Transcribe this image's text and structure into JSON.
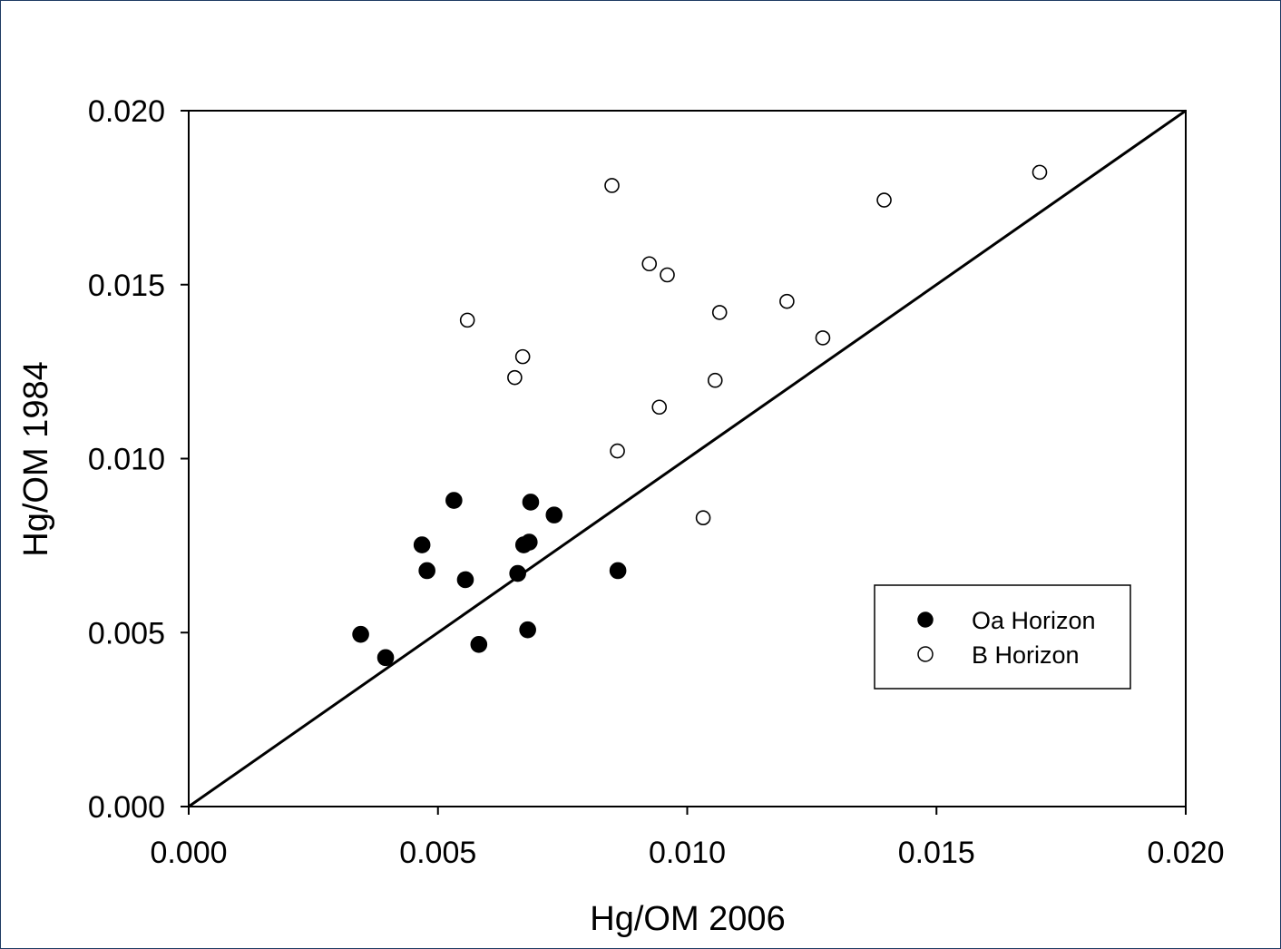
{
  "chart_data": {
    "type": "scatter",
    "xlabel": "Hg/OM 2006",
    "ylabel": "Hg/OM 1984",
    "xlim": [
      0,
      0.02
    ],
    "ylim": [
      0,
      0.02
    ],
    "x_ticks": [
      "0.000",
      "0.005",
      "0.010",
      "0.015",
      "0.020"
    ],
    "y_ticks": [
      "0.000",
      "0.005",
      "0.010",
      "0.015",
      "0.020"
    ],
    "x_tick_values": [
      0,
      0.005,
      0.01,
      0.015,
      0.02
    ],
    "y_tick_values": [
      0,
      0.005,
      0.01,
      0.015,
      0.02
    ],
    "grid": false,
    "legend_position": "bottom-right",
    "reference_line": {
      "kind": "1:1",
      "from": [
        0,
        0
      ],
      "to": [
        0.02,
        0.02
      ]
    },
    "series": [
      {
        "name": "Oa Horizon",
        "marker": "filled-circle",
        "color": "#000000",
        "points": [
          [
            0.00345,
            0.00495
          ],
          [
            0.00395,
            0.00428
          ],
          [
            0.00468,
            0.00752
          ],
          [
            0.00478,
            0.00678
          ],
          [
            0.00532,
            0.0088
          ],
          [
            0.00555,
            0.00652
          ],
          [
            0.00582,
            0.00466
          ],
          [
            0.0066,
            0.0067
          ],
          [
            0.00672,
            0.00752
          ],
          [
            0.0068,
            0.00508
          ],
          [
            0.00683,
            0.0076
          ],
          [
            0.00686,
            0.00875
          ],
          [
            0.00733,
            0.00838
          ],
          [
            0.00861,
            0.00678
          ]
        ]
      },
      {
        "name": "B Horizon",
        "marker": "open-circle",
        "color": "#000000",
        "points": [
          [
            0.00559,
            0.01398
          ],
          [
            0.00654,
            0.01233
          ],
          [
            0.0067,
            0.01293
          ],
          [
            0.00849,
            0.01785
          ],
          [
            0.0086,
            0.01022
          ],
          [
            0.00924,
            0.0156
          ],
          [
            0.00944,
            0.01148
          ],
          [
            0.0096,
            0.01528
          ],
          [
            0.01032,
            0.0083
          ],
          [
            0.01056,
            0.01225
          ],
          [
            0.01065,
            0.0142
          ],
          [
            0.012,
            0.01452
          ],
          [
            0.01272,
            0.01347
          ],
          [
            0.01395,
            0.01743
          ],
          [
            0.01707,
            0.01823
          ]
        ]
      }
    ]
  },
  "colors": {
    "axis": "#000000",
    "frame": "#1f3b63",
    "background": "#ffffff"
  }
}
